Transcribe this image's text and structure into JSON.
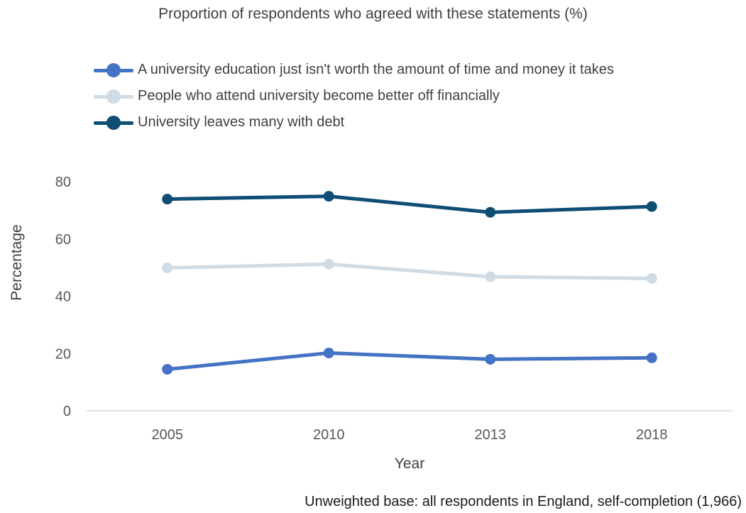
{
  "chart_data": {
    "type": "line",
    "title": "Proportion of respondents who agreed with these statements (%)",
    "xlabel": "Year",
    "ylabel": "Percentage",
    "categories": [
      "2005",
      "2010",
      "2013",
      "2018"
    ],
    "ylim": [
      0,
      80
    ],
    "yticks": [
      0,
      20,
      40,
      60,
      80
    ],
    "grid": false,
    "legend_position": "top-left",
    "series": [
      {
        "name": "A university education just isn't worth the amount of time and money it takes",
        "values": [
          14.5,
          20.2,
          18,
          18.5
        ],
        "color": "#4472c4"
      },
      {
        "name": "People who attend university become better off financially",
        "values": [
          49.9,
          51.2,
          46.8,
          46.2
        ],
        "color": "#d0dbe4"
      },
      {
        "name": "University leaves many with debt",
        "values": [
          73.9,
          74.9,
          69.3,
          71.3
        ],
        "color": "#0e4d74"
      }
    ],
    "note": "Unweighted base: all respondents in England, self-completion (1,966)"
  }
}
